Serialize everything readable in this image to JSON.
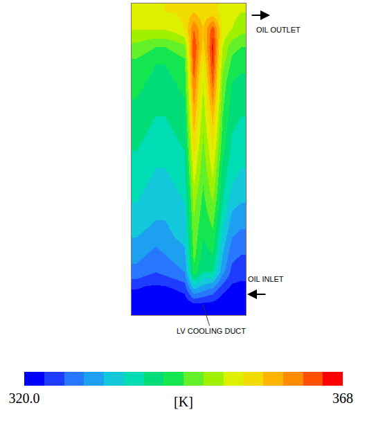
{
  "chart_data": {
    "type": "heatmap",
    "tick_labels": false,
    "cells": [
      [
        352,
        352,
        352,
        353,
        353,
        354,
        356,
        354,
        354,
        352,
        351,
        350
      ],
      [
        350,
        350,
        350,
        350,
        351,
        353,
        362,
        356,
        364,
        352,
        350,
        348
      ],
      [
        346,
        345,
        344,
        344,
        345,
        346,
        365,
        355,
        366,
        350,
        345,
        344
      ],
      [
        343,
        342,
        341,
        341,
        342,
        343,
        364,
        352,
        365,
        348,
        343,
        342
      ],
      [
        342,
        341,
        340,
        340,
        341,
        342,
        362,
        350,
        363,
        346,
        341,
        340
      ],
      [
        341,
        340,
        339,
        339,
        340,
        341,
        360,
        349,
        360,
        345,
        340,
        339
      ],
      [
        340,
        339,
        338,
        338,
        339,
        340,
        358,
        348,
        357,
        344,
        339,
        338
      ],
      [
        339,
        338,
        337,
        337,
        338,
        339,
        356,
        347,
        355,
        343,
        338,
        337
      ],
      [
        338,
        337,
        336,
        336,
        337,
        338,
        354,
        346,
        353,
        342,
        337,
        336
      ],
      [
        337,
        336,
        335,
        335,
        336,
        337,
        352,
        345,
        351,
        340,
        336,
        335
      ],
      [
        336,
        335,
        334,
        334,
        335,
        336,
        350,
        344,
        349,
        339,
        335,
        334
      ],
      [
        335,
        334,
        333,
        333,
        334,
        335,
        348,
        343,
        347,
        338,
        333,
        332
      ],
      [
        334,
        333,
        332,
        332,
        333,
        334,
        347,
        342,
        345,
        336,
        331,
        330
      ],
      [
        332,
        331,
        330,
        331,
        332,
        333,
        346,
        341,
        343,
        334,
        329,
        328
      ],
      [
        330,
        329,
        328,
        329,
        330,
        331,
        345,
        340,
        341,
        332,
        327,
        326
      ],
      [
        328,
        327,
        326,
        327,
        328,
        329,
        343,
        338,
        338,
        330,
        325,
        324
      ],
      [
        323,
        322,
        322,
        322,
        323,
        324,
        332,
        330,
        328,
        324,
        322,
        322
      ],
      [
        320,
        320,
        320,
        320,
        320,
        320,
        321,
        321,
        321,
        320,
        320,
        320
      ]
    ],
    "colorbar": {
      "range": [
        320,
        368
      ],
      "ticks": [
        {
          "value": 320,
          "label": "320.0"
        },
        368
      ],
      "title": "[K]"
    },
    "annotations": [
      "OIL OUTLET",
      "OIL INLET",
      "LV COOLING DUCT"
    ]
  }
}
